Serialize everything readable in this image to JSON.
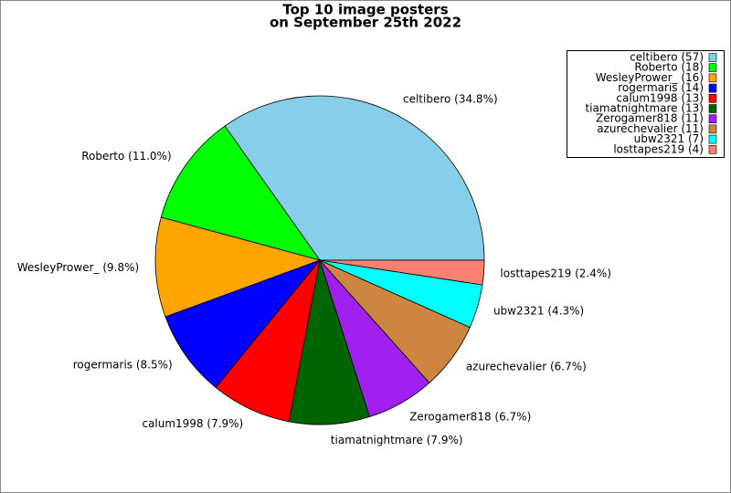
{
  "chart_data": {
    "type": "pie",
    "title": [
      "Top 10 image posters",
      "on September 25th 2022"
    ],
    "values": [
      34.8,
      11.0,
      9.8,
      8.5,
      7.9,
      7.9,
      6.7,
      6.7,
      4.3,
      2.4
    ],
    "value_labels": [
      "celtibero (34.8%)",
      "Roberto (11.0%)",
      "WesleyPrower_ (9.8%)",
      "rogermaris (8.5%)",
      "calum1998 (7.9%)",
      "tiamatnightmare (7.9%)",
      "Zerogamer818 (6.7%)",
      "azurechevalier (6.7%)",
      "ubw2321 (4.3%)",
      "losttapes219 (2.4%)"
    ],
    "legend": [
      "celtibero (57)",
      "Roberto (18)",
      "WesleyPrower_ (16)",
      "rogermaris (14)",
      "calum1998 (13)",
      "tiamatnightmare (13)",
      "Zerogamer818 (11)",
      "azurechevalier (11)",
      "ubw2321 (7)",
      "losttapes219 (4)"
    ],
    "colors": [
      "#87ceeb",
      "#00ff00",
      "#ffa500",
      "#0000ff",
      "#ff0000",
      "#006400",
      "#a020f0",
      "#cd853f",
      "#00ffff",
      "#fa8072"
    ],
    "legend_position": "upper right"
  }
}
